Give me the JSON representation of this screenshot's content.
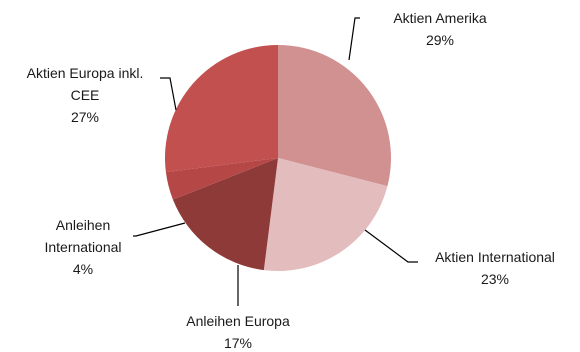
{
  "chart_data": {
    "type": "pie",
    "title": "",
    "start_angle_deg": 0,
    "direction": "clockwise",
    "slices": [
      {
        "label_lines": [
          "Aktien Amerika"
        ],
        "value_label": "29%",
        "value": 29,
        "color": "#d29191"
      },
      {
        "label_lines": [
          "Aktien International"
        ],
        "value_label": "23%",
        "value": 23,
        "color": "#e3bcbd"
      },
      {
        "label_lines": [
          "Anleihen Europa"
        ],
        "value_label": "17%",
        "value": 17,
        "color": "#8e3a39"
      },
      {
        "label_lines": [
          "Anleihen",
          "International"
        ],
        "value_label": "4%",
        "value": 4,
        "color": "#b54747"
      },
      {
        "label_lines": [
          "Aktien Europa inkl.",
          "CEE"
        ],
        "value_label": "27%",
        "value": 27,
        "color": "#c2504f"
      }
    ]
  }
}
